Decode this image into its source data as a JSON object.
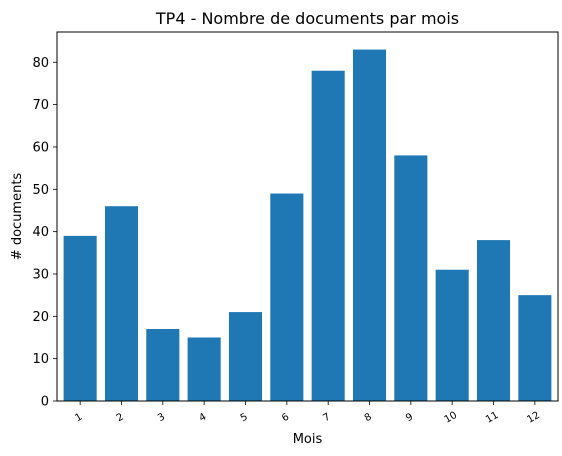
{
  "chart_data": {
    "type": "bar",
    "title": "TP4 - Nombre de documents par mois",
    "xlabel": "Mois",
    "ylabel": "# documents",
    "categories": [
      "1",
      "2",
      "3",
      "4",
      "5",
      "6",
      "7",
      "8",
      "9",
      "10",
      "11",
      "12"
    ],
    "values": [
      39,
      46,
      17,
      15,
      21,
      49,
      78,
      83,
      58,
      31,
      38,
      25
    ],
    "ylim": [
      0,
      87.15
    ],
    "yticks": [
      0,
      10,
      20,
      30,
      40,
      50,
      60,
      70,
      80
    ],
    "xtick_rotation": 30,
    "bar_color": "#1f77b4",
    "grid": false,
    "legend": "none"
  }
}
